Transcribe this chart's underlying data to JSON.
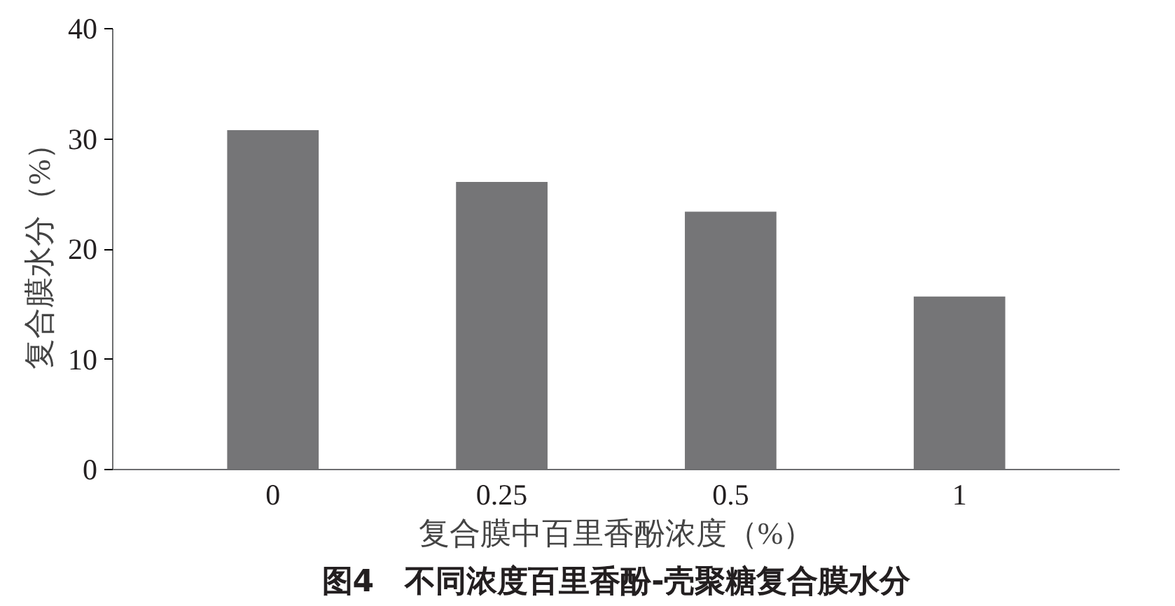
{
  "chart_data": {
    "type": "bar",
    "title": "图4　不同浓度百里香酚-壳聚糖复合膜水分",
    "xlabel": "复合膜中百里香酚浓度（%）",
    "ylabel": "复合膜水分（%）",
    "categories": [
      "0",
      "0.25",
      "0.5",
      "1"
    ],
    "values": [
      30.8,
      26.1,
      23.4,
      15.7
    ],
    "color": "#757577",
    "ylim": [
      0,
      40
    ],
    "yticks": [
      0,
      10,
      20,
      30,
      40
    ]
  }
}
